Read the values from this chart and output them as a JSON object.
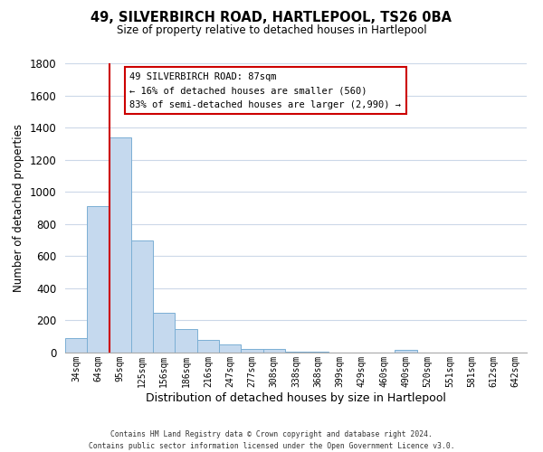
{
  "title": "49, SILVERBIRCH ROAD, HARTLEPOOL, TS26 0BA",
  "subtitle": "Size of property relative to detached houses in Hartlepool",
  "xlabel": "Distribution of detached houses by size in Hartlepool",
  "ylabel": "Number of detached properties",
  "categories": [
    "34sqm",
    "64sqm",
    "95sqm",
    "125sqm",
    "156sqm",
    "186sqm",
    "216sqm",
    "247sqm",
    "277sqm",
    "308sqm",
    "338sqm",
    "368sqm",
    "399sqm",
    "429sqm",
    "460sqm",
    "490sqm",
    "520sqm",
    "551sqm",
    "581sqm",
    "612sqm",
    "642sqm"
  ],
  "values": [
    90,
    910,
    1340,
    700,
    250,
    145,
    80,
    50,
    25,
    20,
    5,
    5,
    0,
    0,
    0,
    15,
    0,
    0,
    0,
    0,
    0
  ],
  "bar_color": "#c5d9ee",
  "bar_edge_color": "#7bafd4",
  "vline_color": "#cc0000",
  "ylim": [
    0,
    1800
  ],
  "yticks": [
    0,
    200,
    400,
    600,
    800,
    1000,
    1200,
    1400,
    1600,
    1800
  ],
  "annotation_title": "49 SILVERBIRCH ROAD: 87sqm",
  "annotation_line1": "← 16% of detached houses are smaller (560)",
  "annotation_line2": "83% of semi-detached houses are larger (2,990) →",
  "annotation_box_color": "#ffffff",
  "annotation_box_edge": "#cc0000",
  "footer_line1": "Contains HM Land Registry data © Crown copyright and database right 2024.",
  "footer_line2": "Contains public sector information licensed under the Open Government Licence v3.0.",
  "background_color": "#ffffff",
  "grid_color": "#ccd8e8"
}
